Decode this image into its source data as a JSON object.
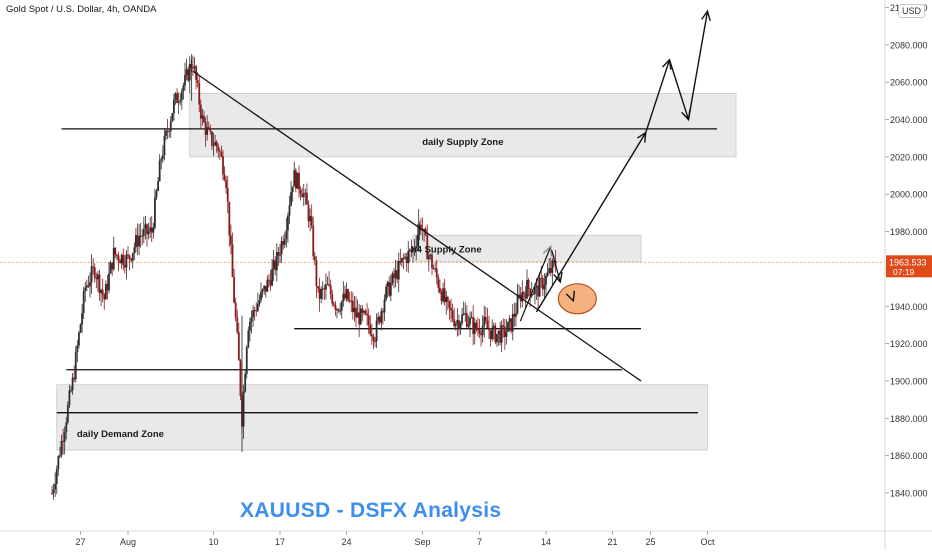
{
  "header": {
    "title": "Gold Spot / U.S. Dollar, 4h, OANDA",
    "currency": "USD"
  },
  "brand_text": "XAUUSD - DSFX Analysis",
  "colors": {
    "up": "#2e2e2e",
    "down": "#8b1a1a",
    "zone": "#e9e9e9",
    "zone_edge": "#c9c9c9",
    "price_line": "#f0a060",
    "price_tag": "#e04a1a",
    "target": "#f4a36a",
    "brand": "#3d8ef0"
  },
  "chart_data": {
    "type": "candlestick",
    "title": "Gold Spot / U.S. Dollar, 4h, OANDA",
    "ylim": [
      1830,
      2100
    ],
    "y_ticks": [
      1840,
      1860,
      1880,
      1900,
      1920,
      1940,
      1960,
      1980,
      2000,
      2020,
      2040,
      2060,
      2080,
      2100
    ],
    "y_tick_labels": [
      "1840.000",
      "1860.000",
      "1880.000",
      "1900.000",
      "1920.000",
      "1940.000",
      "1960.000",
      "1980.000",
      "2000.000",
      "2020.000",
      "2040.000",
      "2060.000",
      "2080.000",
      "2100.000"
    ],
    "x_ticks": [
      {
        "label": "27",
        "day": -5
      },
      {
        "label": "Aug",
        "day": 0
      },
      {
        "label": "10",
        "day": 9
      },
      {
        "label": "17",
        "day": 16
      },
      {
        "label": "24",
        "day": 23
      },
      {
        "label": "Sep",
        "day": 31
      },
      {
        "label": "7",
        "day": 37
      },
      {
        "label": "14",
        "day": 44
      },
      {
        "label": "21",
        "day": 51
      },
      {
        "label": "25",
        "day": 55
      },
      {
        "label": "Oct",
        "day": 61
      }
    ],
    "current_price": {
      "value": 1963.533,
      "label": "1963.533",
      "countdown": "07:19"
    },
    "zones": [
      {
        "name": "daily Supply Zone",
        "day_from": 6.5,
        "day_to": 64,
        "low": 2020,
        "high": 2054
      },
      {
        "name": "h4 Supply Zone",
        "day_from": 30,
        "day_to": 54,
        "low": 1964,
        "high": 1978
      },
      {
        "name": "daily Demand Zone",
        "day_from": -7.5,
        "day_to": 61,
        "low": 1863,
        "high": 1898
      }
    ],
    "levels": [
      {
        "price": 2035,
        "day_from": -7,
        "day_to": 62
      },
      {
        "price": 1928,
        "day_from": 17.5,
        "day_to": 54
      },
      {
        "price": 1906,
        "day_from": -6.5,
        "day_to": 52
      },
      {
        "price": 1883,
        "day_from": -7.5,
        "day_to": 60
      }
    ],
    "trendline": {
      "from": {
        "day": 6.8,
        "price": 2066
      },
      "to": {
        "day": 54,
        "price": 1900
      }
    },
    "projection": [
      {
        "day": 43,
        "price": 1937
      },
      {
        "day": 54.5,
        "price": 2033
      },
      {
        "day": 57,
        "price": 2072
      },
      {
        "day": 59,
        "price": 2040
      },
      {
        "day": 61,
        "price": 2098
      }
    ],
    "small_path": [
      {
        "day": 41.3,
        "price": 1932
      },
      {
        "day": 44.5,
        "price": 1972
      },
      {
        "day": 44.6,
        "price": 1970
      },
      {
        "day": 45.5,
        "price": 1953
      }
    ],
    "target_circle": {
      "day": 47.3,
      "price": 1944
    },
    "swing_points": [
      {
        "d": -8,
        "p": 1840
      },
      {
        "d": -5.8,
        "p": 1900
      },
      {
        "d": -4.5,
        "p": 1950
      },
      {
        "d": -3.5,
        "p": 1960
      },
      {
        "d": -2.5,
        "p": 1944
      },
      {
        "d": -1.5,
        "p": 1968
      },
      {
        "d": 0,
        "p": 1965
      },
      {
        "d": 1.2,
        "p": 1978
      },
      {
        "d": 2.5,
        "p": 1980
      },
      {
        "d": 3.5,
        "p": 2020
      },
      {
        "d": 4.8,
        "p": 2048
      },
      {
        "d": 6,
        "p": 2060
      },
      {
        "d": 6.8,
        "p": 2072
      },
      {
        "d": 7.8,
        "p": 2040
      },
      {
        "d": 8.6,
        "p": 2030
      },
      {
        "d": 9.5,
        "p": 2025
      },
      {
        "d": 10.3,
        "p": 2010
      },
      {
        "d": 11,
        "p": 1955
      },
      {
        "d": 11.6,
        "p": 1915
      },
      {
        "d": 12,
        "p": 1880
      },
      {
        "d": 12.6,
        "p": 1930
      },
      {
        "d": 13.5,
        "p": 1940
      },
      {
        "d": 14.5,
        "p": 1950
      },
      {
        "d": 15.5,
        "p": 1962
      },
      {
        "d": 16.5,
        "p": 1980
      },
      {
        "d": 17.4,
        "p": 2010
      },
      {
        "d": 18.4,
        "p": 2002
      },
      {
        "d": 19.2,
        "p": 1985
      },
      {
        "d": 20,
        "p": 1945
      },
      {
        "d": 21,
        "p": 1950
      },
      {
        "d": 22,
        "p": 1940
      },
      {
        "d": 23,
        "p": 1945
      },
      {
        "d": 24,
        "p": 1935
      },
      {
        "d": 25,
        "p": 1933
      },
      {
        "d": 26,
        "p": 1925
      },
      {
        "d": 27,
        "p": 1945
      },
      {
        "d": 28,
        "p": 1955
      },
      {
        "d": 29,
        "p": 1965
      },
      {
        "d": 30,
        "p": 1970
      },
      {
        "d": 30.8,
        "p": 1985
      },
      {
        "d": 31.5,
        "p": 1970
      },
      {
        "d": 32.5,
        "p": 1955
      },
      {
        "d": 33.5,
        "p": 1940
      },
      {
        "d": 34.5,
        "p": 1932
      },
      {
        "d": 35.5,
        "p": 1935
      },
      {
        "d": 36.5,
        "p": 1928
      },
      {
        "d": 37.5,
        "p": 1930
      },
      {
        "d": 38.5,
        "p": 1925
      },
      {
        "d": 39.5,
        "p": 1925
      },
      {
        "d": 40.3,
        "p": 1930
      },
      {
        "d": 41.3,
        "p": 1946
      },
      {
        "d": 42,
        "p": 1950
      },
      {
        "d": 43,
        "p": 1948
      },
      {
        "d": 44,
        "p": 1955
      },
      {
        "d": 45,
        "p": 1963
      }
    ]
  }
}
